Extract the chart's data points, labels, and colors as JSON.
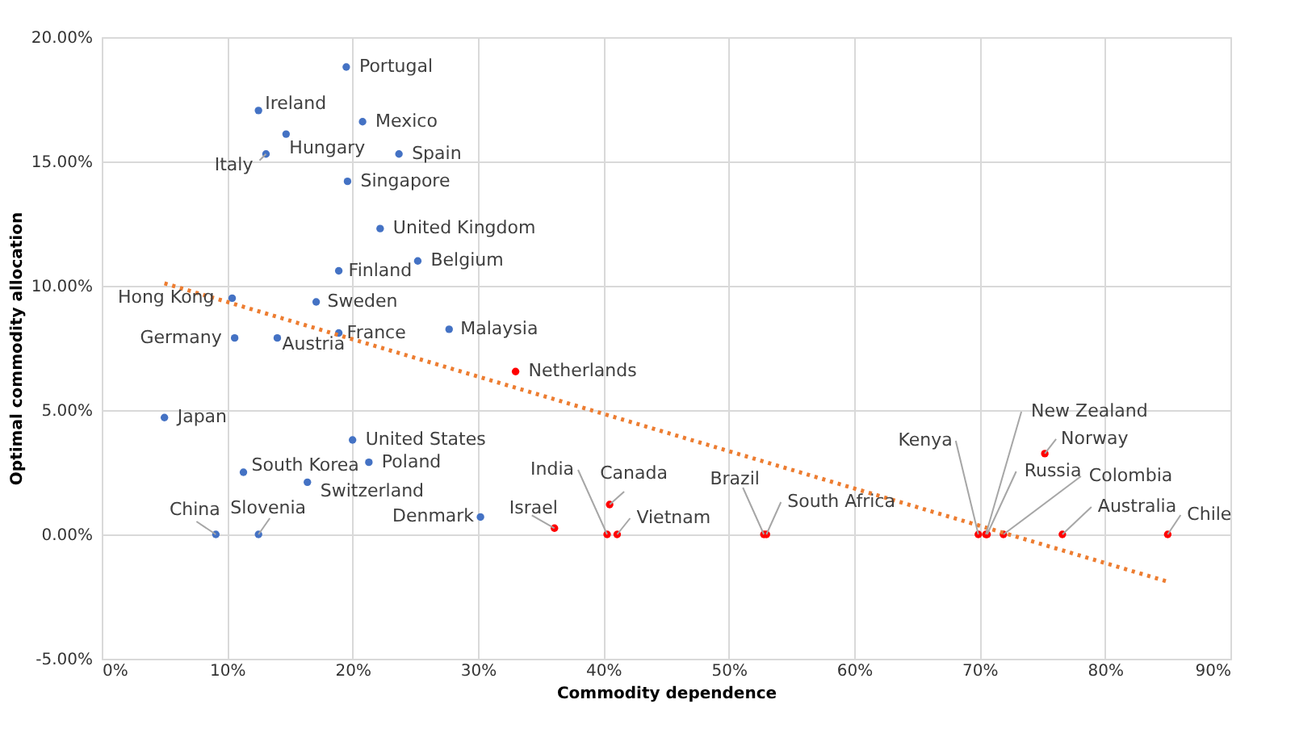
{
  "chart_data": {
    "type": "scatter",
    "xlabel": "Commodity dependence",
    "ylabel": "Optimal commodity allocation",
    "xlim": [
      0,
      90
    ],
    "ylim": [
      -5,
      20
    ],
    "xticks": [
      {
        "value": 0,
        "label": "0%"
      },
      {
        "value": 10,
        "label": "10%"
      },
      {
        "value": 20,
        "label": "20%"
      },
      {
        "value": 30,
        "label": "30%"
      },
      {
        "value": 40,
        "label": "40%"
      },
      {
        "value": 50,
        "label": "50%"
      },
      {
        "value": 60,
        "label": "60%"
      },
      {
        "value": 70,
        "label": "70%"
      },
      {
        "value": 80,
        "label": "80%"
      },
      {
        "value": 90,
        "label": "90%"
      }
    ],
    "yticks": [
      {
        "value": -5,
        "label": "-5.00%"
      },
      {
        "value": 0,
        "label": "0.00%"
      },
      {
        "value": 5,
        "label": "5.00%"
      },
      {
        "value": 10,
        "label": "10.00%"
      },
      {
        "value": 15,
        "label": "15.00%"
      },
      {
        "value": 20,
        "label": "20.00%"
      }
    ],
    "grid": true,
    "marker": "circle",
    "series": [
      {
        "color": "#4472c4",
        "x": [
          19.5,
          12.5,
          20.8,
          14.7,
          13.1,
          23.7,
          19.6,
          22.2,
          25.2,
          18.9,
          10.4,
          17.1,
          18.9,
          27.7,
          10.6,
          14.0,
          5.0,
          20.0,
          11.3,
          21.3,
          16.4,
          9.1,
          12.5,
          30.2
        ],
        "values": [
          18.8,
          17.05,
          16.6,
          16.1,
          15.3,
          15.3,
          14.2,
          12.3,
          11.0,
          10.6,
          9.5,
          9.35,
          8.1,
          8.25,
          7.9,
          7.9,
          4.7,
          3.8,
          2.5,
          2.9,
          2.1,
          0,
          0,
          0.7
        ]
      },
      {
        "color": "#ff0000",
        "x": [
          33.0,
          36.1,
          40.3,
          40.5,
          41.1,
          52.8,
          53.0,
          69.9,
          70.5,
          70.6,
          71.9,
          75.2,
          76.6,
          85.0
        ],
        "values": [
          6.55,
          0.25,
          0,
          1.2,
          0,
          0,
          0,
          0,
          0,
          0,
          0,
          3.25,
          0,
          0
        ]
      },
      {
        "type": "line",
        "color": "#ed7d31",
        "line_style": "dotted",
        "marker": "none",
        "x": [
          5,
          85
        ],
        "values": [
          10.1,
          -1.9
        ]
      }
    ],
    "annotations": [
      {
        "text": "Portugal",
        "x": 19.5,
        "y": 18.8
      },
      {
        "text": "Ireland",
        "x": 12.5,
        "y": 17.05
      },
      {
        "text": "Mexico",
        "x": 20.8,
        "y": 16.6
      },
      {
        "text": "Hungary",
        "x": 14.7,
        "y": 16.1
      },
      {
        "text": "Italy",
        "x": 13.1,
        "y": 15.3
      },
      {
        "text": "Spain",
        "x": 23.7,
        "y": 15.3
      },
      {
        "text": "Singapore",
        "x": 19.6,
        "y": 14.2
      },
      {
        "text": "United Kingdom",
        "x": 22.2,
        "y": 12.3
      },
      {
        "text": "Belgium",
        "x": 25.2,
        "y": 11.0
      },
      {
        "text": "Finland",
        "x": 18.9,
        "y": 10.6
      },
      {
        "text": "Hong Kong",
        "x": 10.4,
        "y": 9.5
      },
      {
        "text": "Sweden",
        "x": 17.1,
        "y": 9.35
      },
      {
        "text": "France",
        "x": 18.9,
        "y": 8.1
      },
      {
        "text": "Malaysia",
        "x": 27.7,
        "y": 8.25
      },
      {
        "text": "Germany",
        "x": 10.6,
        "y": 7.9
      },
      {
        "text": "Austria",
        "x": 14.0,
        "y": 7.9
      },
      {
        "text": "Japan",
        "x": 5.0,
        "y": 4.7
      },
      {
        "text": "United States",
        "x": 20.0,
        "y": 3.8
      },
      {
        "text": "South Korea",
        "x": 11.3,
        "y": 2.5
      },
      {
        "text": "Poland",
        "x": 21.3,
        "y": 2.9
      },
      {
        "text": "Switzerland",
        "x": 16.4,
        "y": 2.1
      },
      {
        "text": "China",
        "x": 9.1,
        "y": 0
      },
      {
        "text": "Slovenia",
        "x": 12.5,
        "y": 0
      },
      {
        "text": "Denmark",
        "x": 30.2,
        "y": 0.7
      },
      {
        "text": "Netherlands",
        "x": 33.0,
        "y": 6.55
      },
      {
        "text": "Israel",
        "x": 36.1,
        "y": 0.25
      },
      {
        "text": "India",
        "x": 40.3,
        "y": 0
      },
      {
        "text": "Canada",
        "x": 40.5,
        "y": 1.2
      },
      {
        "text": "Vietnam",
        "x": 41.1,
        "y": 0
      },
      {
        "text": "Brazil",
        "x": 52.8,
        "y": 0
      },
      {
        "text": "South Africa",
        "x": 53.0,
        "y": 0
      },
      {
        "text": "Kenya",
        "x": 69.9,
        "y": 0
      },
      {
        "text": "New Zealand",
        "x": 70.5,
        "y": 0
      },
      {
        "text": "Russia",
        "x": 70.6,
        "y": 0
      },
      {
        "text": "Colombia",
        "x": 71.9,
        "y": 0
      },
      {
        "text": "Norway",
        "x": 75.2,
        "y": 3.25
      },
      {
        "text": "Australia",
        "x": 76.6,
        "y": 0
      },
      {
        "text": "Chile",
        "x": 85.0,
        "y": 0
      }
    ]
  }
}
